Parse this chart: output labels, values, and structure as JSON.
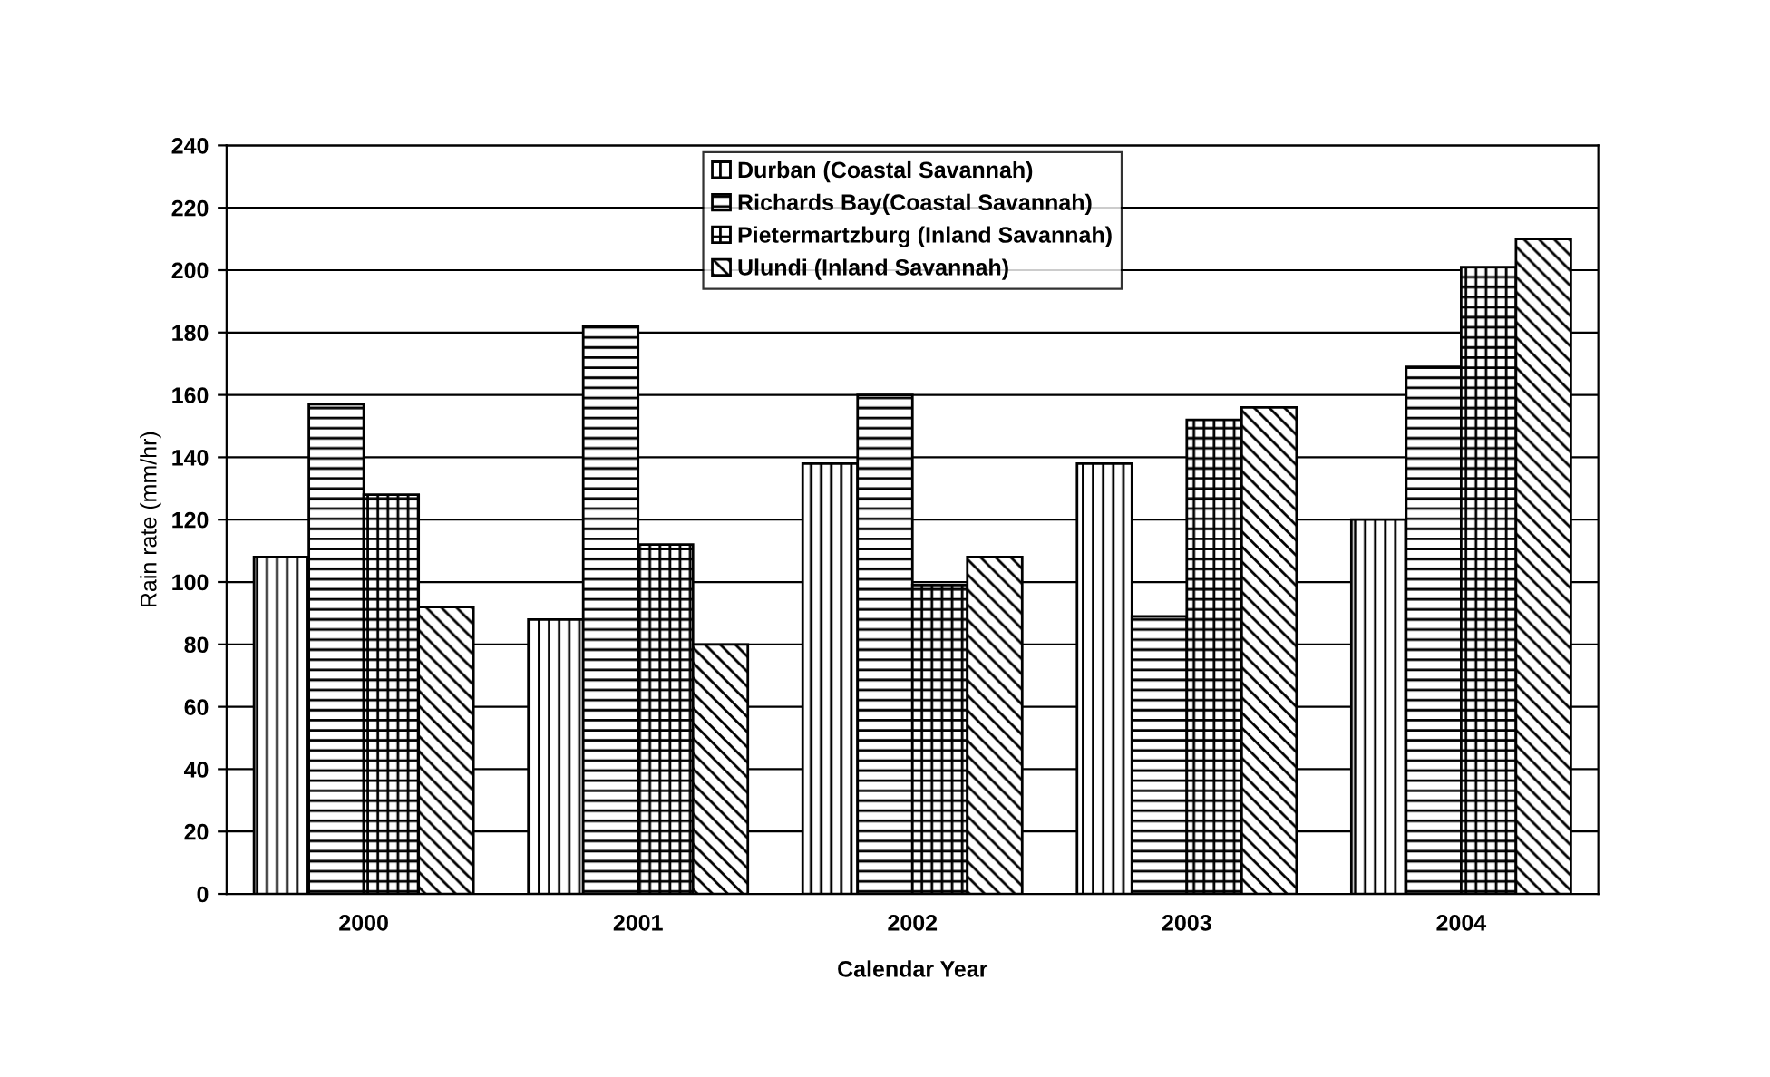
{
  "chart_data": {
    "type": "bar",
    "xlabel": "Calendar Year",
    "ylabel": "Rain rate (mm/hr)",
    "categories": [
      "2000",
      "2001",
      "2002",
      "2003",
      "2004"
    ],
    "series": [
      {
        "name": "Durban (Coastal Savannah)",
        "values": [
          108,
          88,
          138,
          138,
          120
        ]
      },
      {
        "name": "Richards Bay(Coastal Savannah)",
        "values": [
          157,
          182,
          160,
          89,
          169
        ]
      },
      {
        "name": "Pietermartzburg (Inland Savannah)",
        "values": [
          128,
          112,
          99,
          152,
          201
        ]
      },
      {
        "name": "Ulundi (Inland Savannah)",
        "values": [
          92,
          80,
          108,
          156,
          210
        ]
      }
    ],
    "ylim": [
      0,
      240
    ],
    "yticks": [
      0,
      20,
      40,
      60,
      80,
      100,
      120,
      140,
      160,
      180,
      200,
      220,
      240
    ],
    "grid": "y",
    "legend": "top"
  }
}
